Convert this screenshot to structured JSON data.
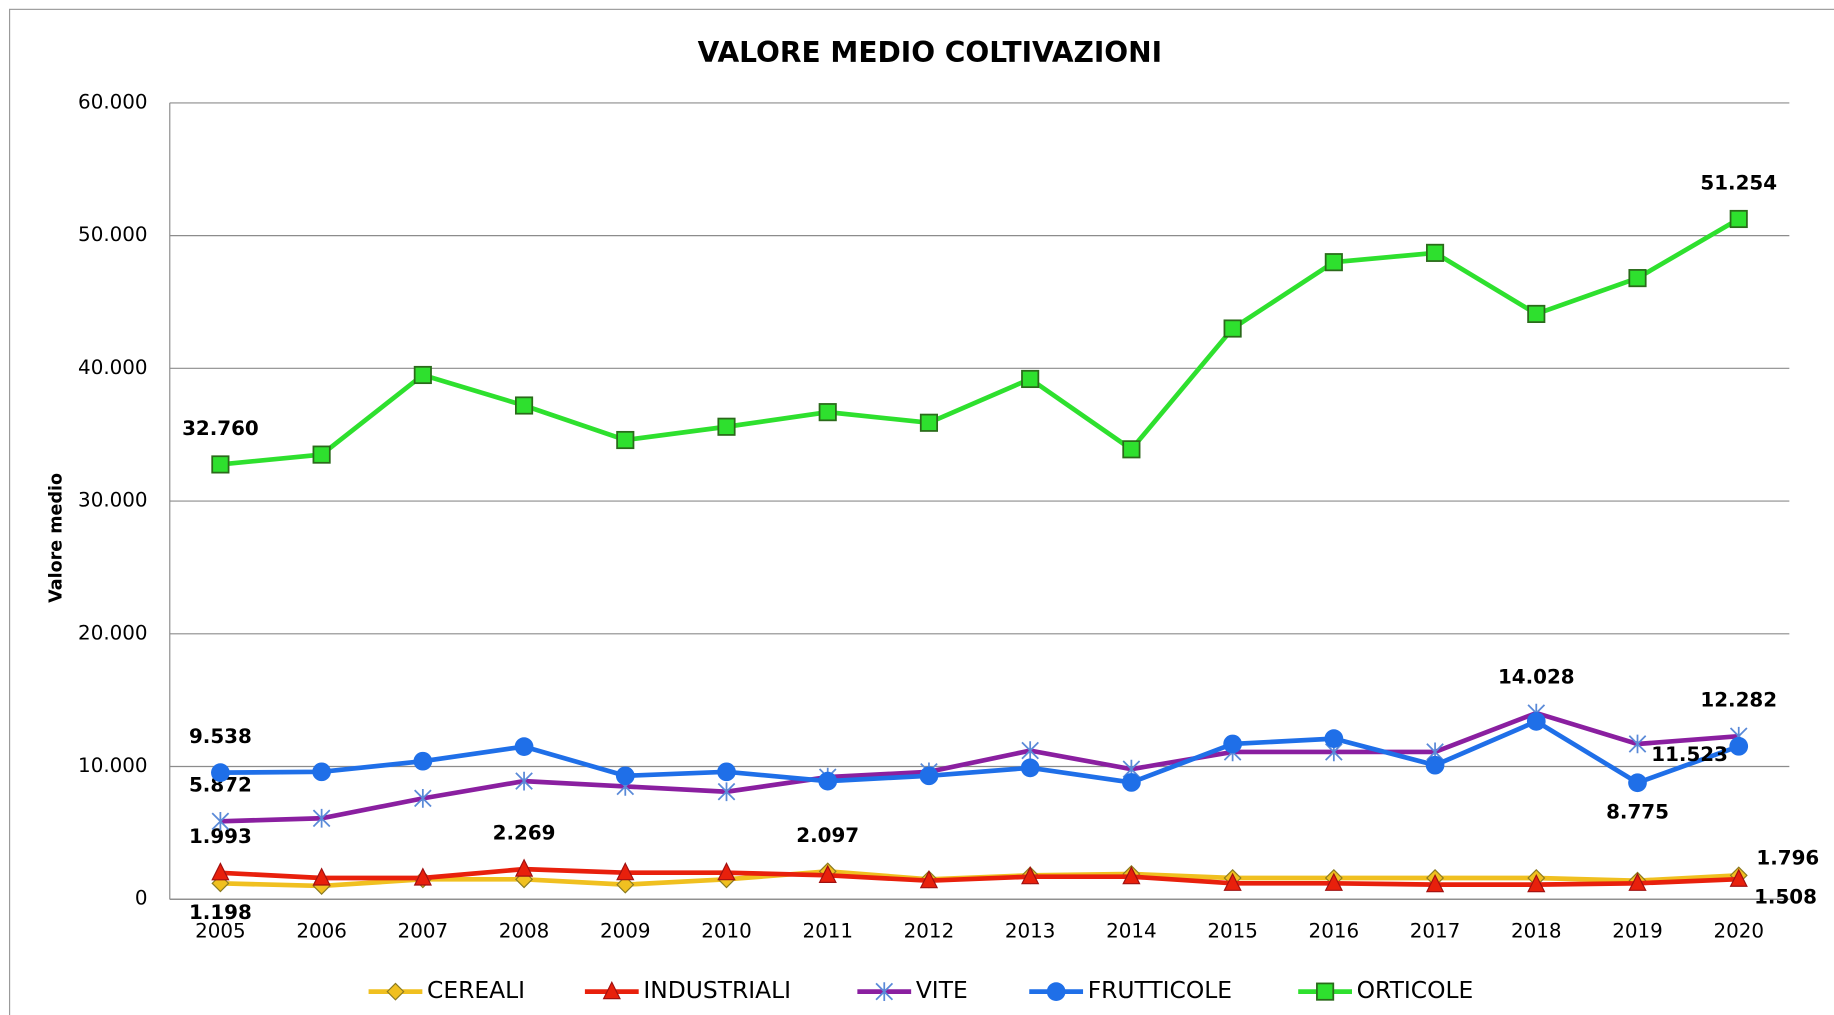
{
  "chart_data": {
    "type": "line",
    "title": "VALORE MEDIO COLTIVAZIONI",
    "y_label": "Valore medio",
    "categories": [
      "2005",
      "2006",
      "2007",
      "2008",
      "2009",
      "2010",
      "2011",
      "2012",
      "2013",
      "2014",
      "2015",
      "2016",
      "2017",
      "2018",
      "2019",
      "2020"
    ],
    "ylim": [
      0,
      60000
    ],
    "yticks": [
      0,
      {
        "value": 10000,
        "label": "10.000"
      },
      {
        "value": 20000,
        "label": "20.000"
      },
      {
        "value": 30000,
        "label": "30.000"
      },
      {
        "value": 40000,
        "label": "40.000"
      },
      {
        "value": 50000,
        "label": "50.000"
      },
      {
        "value": 60000,
        "label": "60.000"
      }
    ],
    "grid": true,
    "legend": "bottom",
    "series": [
      {
        "name": "CEREALI",
        "color": "#f0c020",
        "marker": "diamond",
        "values": [
          1198,
          1000,
          1500,
          1500,
          1100,
          1500,
          2097,
          1500,
          1800,
          1900,
          1600,
          1600,
          1600,
          1600,
          1400,
          1796
        ],
        "value_labels": [
          "1.198",
          null,
          null,
          null,
          null,
          null,
          "2.097",
          null,
          null,
          null,
          null,
          null,
          null,
          null,
          null,
          "1.796"
        ]
      },
      {
        "name": "INDUSTRIALI",
        "color": "#e8200c",
        "marker": "triangle",
        "values": [
          1993,
          1600,
          1600,
          2269,
          2000,
          2000,
          1800,
          1400,
          1700,
          1700,
          1200,
          1200,
          1100,
          1100,
          1200,
          1508
        ],
        "value_labels": [
          "1.993",
          null,
          null,
          "2.269",
          null,
          null,
          null,
          null,
          null,
          null,
          null,
          null,
          null,
          null,
          null,
          "1.508"
        ]
      },
      {
        "name": "VITE",
        "color": "#8a1fa0",
        "marker": "star",
        "values": [
          5872,
          6100,
          7600,
          8900,
          8500,
          8100,
          9200,
          9600,
          11200,
          9800,
          11100,
          11100,
          11100,
          14028,
          11700,
          12282
        ],
        "value_labels": [
          "5.872",
          null,
          null,
          null,
          null,
          null,
          null,
          null,
          null,
          null,
          null,
          null,
          null,
          "14.028",
          null,
          "12.282"
        ]
      },
      {
        "name": "FRUTTICOLE",
        "color": "#1f6fe8",
        "marker": "circle",
        "values": [
          9538,
          9600,
          10400,
          11500,
          9300,
          9600,
          8900,
          9300,
          9900,
          8800,
          11700,
          12100,
          10100,
          13400,
          8775,
          11523
        ],
        "value_labels": [
          "9.538",
          null,
          null,
          null,
          null,
          null,
          null,
          null,
          null,
          null,
          null,
          null,
          null,
          null,
          "8.775",
          "11.523"
        ]
      },
      {
        "name": "ORTICOLE",
        "color": "#2ee02e",
        "marker": "square",
        "values": [
          32760,
          33500,
          39500,
          37200,
          34600,
          35600,
          36700,
          35900,
          39200,
          33900,
          43000,
          48000,
          48700,
          44100,
          46800,
          51254
        ],
        "value_labels": [
          "32.760",
          null,
          null,
          null,
          null,
          null,
          null,
          null,
          null,
          null,
          null,
          null,
          null,
          null,
          null,
          "51.254"
        ]
      }
    ]
  }
}
